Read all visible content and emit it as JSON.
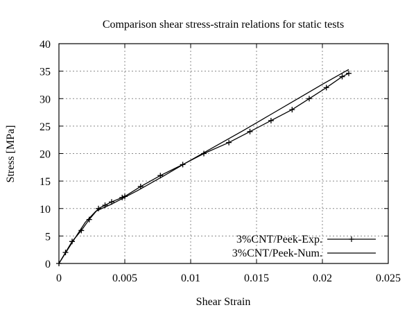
{
  "chart_data": {
    "type": "line",
    "title": "Comparison shear stress-strain relations for static tests",
    "xlabel": "Shear Strain",
    "ylabel": "Stress [MPa]",
    "xlim": [
      0,
      0.025
    ],
    "ylim": [
      0,
      40
    ],
    "xticks": [
      0,
      0.005,
      0.01,
      0.015,
      0.02,
      0.025
    ],
    "xtick_labels": [
      "0",
      "0.005",
      "0.01",
      "0.015",
      "0.02",
      "0.025"
    ],
    "yticks": [
      0,
      5,
      10,
      15,
      20,
      25,
      30,
      35,
      40
    ],
    "ytick_labels": [
      "0",
      "5",
      "10",
      "15",
      "20",
      "25",
      "30",
      "35",
      "40"
    ],
    "grid": true,
    "legend_position": "bottom-right",
    "series": [
      {
        "name": "3%CNT/Peek-Exp.",
        "marker": "plus",
        "color": "#000000",
        "x": [
          0,
          0.0005,
          0.001,
          0.0017,
          0.0023,
          0.003,
          0.0035,
          0.004,
          0.0048,
          0.005,
          0.0062,
          0.0077,
          0.0094,
          0.011,
          0.0129,
          0.0145,
          0.0161,
          0.0177,
          0.019,
          0.0203,
          0.0215,
          0.022
        ],
        "y": [
          0,
          2,
          4,
          6,
          8,
          10,
          10.6,
          11.2,
          12,
          12.2,
          14,
          16,
          18,
          20,
          22,
          24,
          26,
          28,
          30,
          32,
          34,
          34.6
        ]
      },
      {
        "name": "3%CNT/Peek-Num.",
        "marker": "none",
        "color": "#000000",
        "x": [
          0,
          0.001,
          0.002,
          0.0028,
          0.004,
          0.006,
          0.008,
          0.01,
          0.012,
          0.014,
          0.016,
          0.018,
          0.02,
          0.022
        ],
        "y": [
          0,
          3.8,
          7.5,
          9.5,
          10.8,
          13.3,
          16,
          18.8,
          21.5,
          24.2,
          27,
          29.8,
          32.6,
          35.3
        ]
      }
    ]
  }
}
